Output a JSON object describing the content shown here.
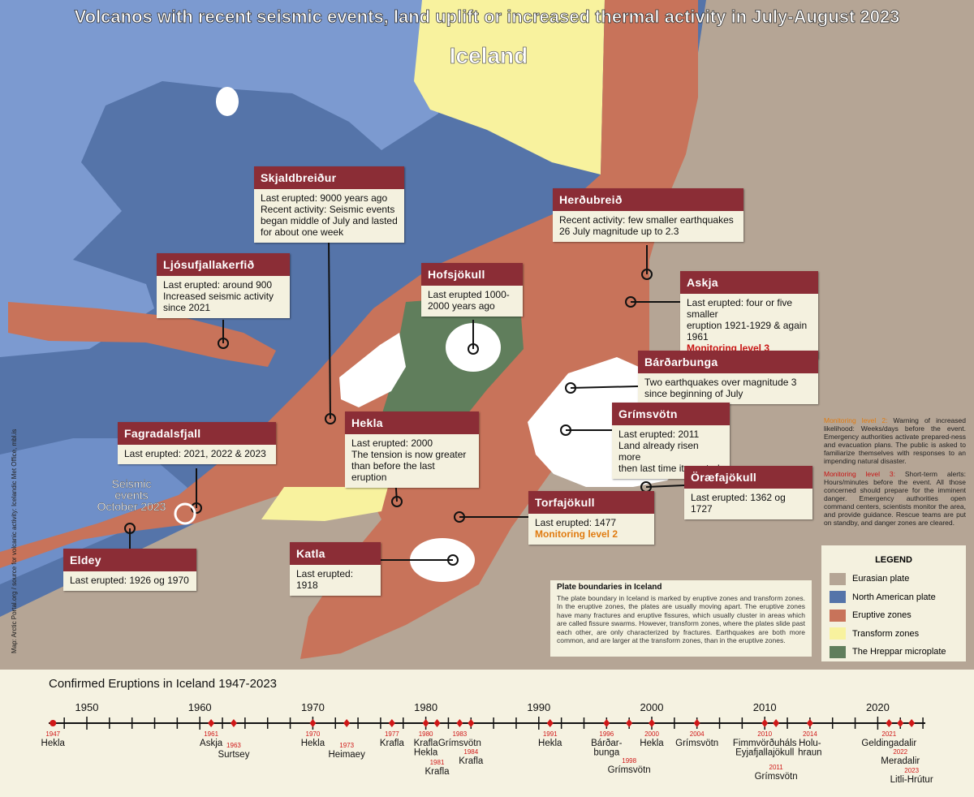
{
  "title": "Volcanos with recent seismic events, land uplift or increased thermal activity in July-August 2023",
  "subtitle": "Iceland",
  "credit": "Map: Arctic Portal.org / source for volcanic activity: Icelandic Met Office, mbl.is",
  "callouts": [
    {
      "name": "Skjaldbreiður",
      "lines": [
        "Last erupted: 9000 years ago",
        "Recent activity: Seismic events",
        "began middle of July and lasted",
        "for about one week"
      ]
    },
    {
      "name": "Ljósufjallakerfið",
      "lines": [
        "Last erupted: around 900",
        "Increased seismic activity",
        "since 2021"
      ]
    },
    {
      "name": "Hofsjökull",
      "lines": [
        "Last erupted 1000-",
        "2000 years ago"
      ]
    },
    {
      "name": "Herðubreið",
      "lines": [
        "Recent activity: few smaller earthquakes",
        "26 July magnitude up to 2.3"
      ]
    },
    {
      "name": "Askja",
      "lines": [
        "Last erupted: four or five smaller",
        "eruption 1921-1929 & again 1961"
      ],
      "alert": "Monitoring level 3",
      "alert_color": "#c81414"
    },
    {
      "name": "Bárðarbunga",
      "lines": [
        "Two earthquakes over magnitude 3",
        "since beginning of July"
      ]
    },
    {
      "name": "Grímsvötn",
      "lines": [
        "Last erupted: 2011",
        "Land already risen more",
        "then last time it erupted"
      ]
    },
    {
      "name": "Öræfajökull",
      "lines": [
        "Last erupted: 1362 og 1727"
      ]
    },
    {
      "name": "Torfajökull",
      "lines": [
        "Last erupted: 1477"
      ],
      "alert": "Monitoring level 2",
      "alert_color": "#e07b10"
    },
    {
      "name": "Hekla",
      "lines": [
        "Last erupted: 2000",
        "The tension is now greater",
        "than before the last eruption"
      ]
    },
    {
      "name": "Fagradalsfjall",
      "lines": [
        "Last erupted: 2021, 2022 & 2023"
      ]
    },
    {
      "name": "Katla",
      "lines": [
        "Last erupted: 1918"
      ]
    },
    {
      "name": "Eldey",
      "lines": [
        "Last erupted: 1926 og 1970"
      ]
    }
  ],
  "seismic_label": [
    "Seismic",
    "events",
    "October 2023"
  ],
  "monitoring_notes": [
    {
      "label": "Monitoring level 2:",
      "label_color": "#e07b10",
      "text": "Warning of increased likelihood: Weeks/days before the event. Emergency authorities activate prepared-ness and evacuation plans. The public is asked to familiarize themselves with responses to an impending natural disaster."
    },
    {
      "label": "Monitoring level 3:",
      "label_color": "#c81414",
      "text": "Short-term alerts: Hours/minutes before the event. All those concerned should prepare for the imminent danger. Emergency authorities open command centers, scientists monitor the area, and provide guidance. Rescue teams are put on standby, and danger zones are cleared."
    }
  ],
  "legend": {
    "title": "LEGEND",
    "items": [
      {
        "label": "Eurasian plate",
        "color": "#b5a595"
      },
      {
        "label": "North American plate",
        "color": "#5574a9"
      },
      {
        "label": "Eruptive zones",
        "color": "#c8735a"
      },
      {
        "label": "Transform zones",
        "color": "#f8f29e"
      },
      {
        "label": "The Hreppar microplate",
        "color": "#607e5c"
      }
    ]
  },
  "plate_info": {
    "title": "Plate boundaries in Iceland",
    "text": "The plate boundary in Iceland is marked by eruptive zones and transform zones. In the eruptive zones, the plates are usually moving apart. The eruptive zones have many fractures and eruptive fissures, which usually cluster in areas which are called fissure swarms. However, transform zones, where the plates slide past each other, are only characterized by fractures. Earthquakes are both more common, and are larger at the transform zones, than in the eruptive zones."
  },
  "timeline": {
    "title": "Confirmed Eruptions in Iceland 1947-2023",
    "decades": [
      1950,
      1960,
      1970,
      1980,
      1990,
      2000,
      2010,
      2020
    ],
    "eruptions": [
      {
        "year": 1947,
        "names": [
          "Hekla"
        ]
      },
      {
        "year": 1961,
        "names": [
          "Askja"
        ]
      },
      {
        "year": 1963,
        "names": [
          "Surtsey"
        ]
      },
      {
        "year": 1970,
        "names": [
          "Hekla"
        ]
      },
      {
        "year": 1973,
        "names": [
          "Heimaey"
        ]
      },
      {
        "year": 1977,
        "names": [
          "Krafla"
        ]
      },
      {
        "year": 1980,
        "names": [
          "Krafla",
          "Hekla"
        ]
      },
      {
        "year": 1981,
        "names": [
          "Krafla"
        ]
      },
      {
        "year": 1983,
        "names": [
          "Grímsvötn"
        ]
      },
      {
        "year": 1984,
        "names": [
          "Krafla"
        ]
      },
      {
        "year": 1991,
        "names": [
          "Hekla"
        ]
      },
      {
        "year": 1996,
        "names": [
          "Bárðar-",
          "bunga"
        ]
      },
      {
        "year": 1998,
        "names": [
          "Grímsvötn"
        ]
      },
      {
        "year": 2000,
        "names": [
          "Hekla"
        ]
      },
      {
        "year": 2004,
        "names": [
          "Grímsvötn"
        ]
      },
      {
        "year": 2010,
        "names": [
          "Fimmvörðuháls",
          "Eyjafjallajökull"
        ]
      },
      {
        "year": 2011,
        "names": [
          "Grímsvötn"
        ]
      },
      {
        "year": 2014,
        "names": [
          "Holu-",
          "hraun"
        ]
      },
      {
        "year": 2021,
        "names": [
          "Geldingadalir"
        ]
      },
      {
        "year": 2022,
        "names": [
          "Meradalir"
        ]
      },
      {
        "year": 2023,
        "names": [
          "Litli-Hrútur"
        ]
      }
    ]
  }
}
